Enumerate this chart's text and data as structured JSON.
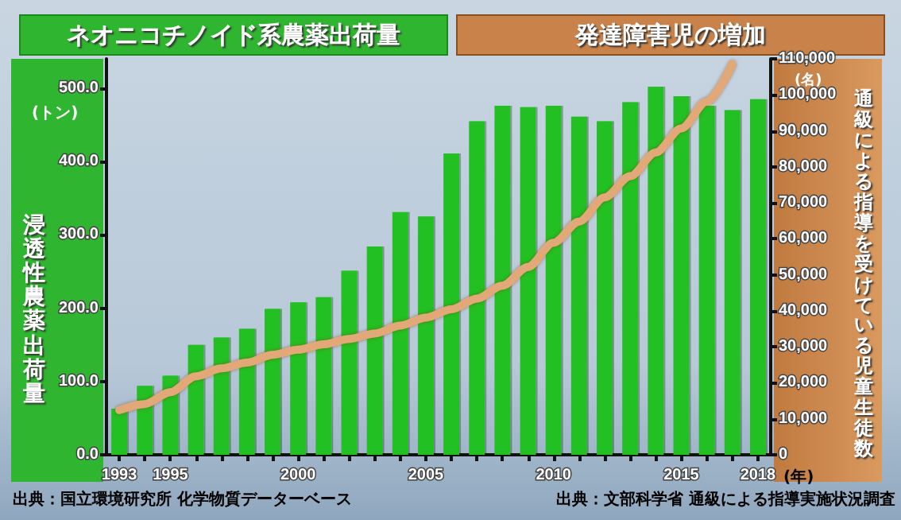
{
  "chart_data": {
    "type": "bar",
    "title": "ネオニコチノイド系農薬出荷量",
    "subtitle": "発達障害児の増加",
    "ylabel": "浸透性農薬出荷量",
    "y2label": "通級による指導を受けている児童生徒数",
    "annotations": [
      "(トン)",
      "(名)",
      "(年)",
      "出典：国立環境研究所 化学物質データーベース",
      "出典：文部科学省 通級による指導実施状況調査"
    ],
    "categories": [
      "1993",
      null,
      "1995",
      null,
      null,
      null,
      null,
      "2000",
      null,
      null,
      null,
      null,
      "2005",
      null,
      null,
      null,
      null,
      "2010",
      null,
      null,
      null,
      null,
      "2015",
      null,
      null,
      "2018"
    ],
    "series": [
      {
        "color": "#22c022",
        "values": [
          63,
          94,
          108,
          150,
          160,
          172,
          199,
          208,
          215,
          251,
          284,
          331,
          325,
          411,
          455,
          476,
          474,
          476,
          461,
          455,
          481,
          502,
          489,
          476,
          470,
          485
        ]
      },
      {
        "type": "line",
        "axis": "y2",
        "color": "#e2a878",
        "values": [
          12400,
          14100,
          17400,
          21800,
          24000,
          25600,
          27800,
          29200,
          30700,
          32200,
          33700,
          35900,
          38100,
          40400,
          43400,
          47000,
          52200,
          58900,
          64800,
          71500,
          77400,
          84000,
          90700,
          98100,
          108500,
          null
        ]
      }
    ],
    "ylim": [
      0,
      540
    ],
    "yticks": [
      {
        "value": 0,
        "label": "0.0"
      },
      {
        "value": 100,
        "label": "100.0"
      },
      {
        "value": 200,
        "label": "200.0"
      },
      {
        "value": 300,
        "label": "300.0"
      },
      {
        "value": 400,
        "label": "400.0"
      },
      {
        "value": 500,
        "label": "500.0"
      }
    ],
    "y2lim": [
      0,
      110000
    ],
    "y2ticks": [
      0,
      {
        "value": 10000,
        "label": "10,000"
      },
      {
        "value": 20000,
        "label": "20,000"
      },
      {
        "value": 30000,
        "label": "30,000"
      },
      {
        "value": 40000,
        "label": "40,000"
      },
      {
        "value": 50000,
        "label": "50,000"
      },
      {
        "value": 60000,
        "label": "60,000"
      },
      {
        "value": 70000,
        "label": "70,000"
      },
      {
        "value": 80000,
        "label": "80,000"
      },
      {
        "value": 90000,
        "label": "90,000"
      },
      {
        "value": 100000,
        "label": "100,000"
      },
      {
        "value": 110000,
        "label": "110,000"
      }
    ],
    "grid": false,
    "marker": "none",
    "line_style": "solid"
  }
}
